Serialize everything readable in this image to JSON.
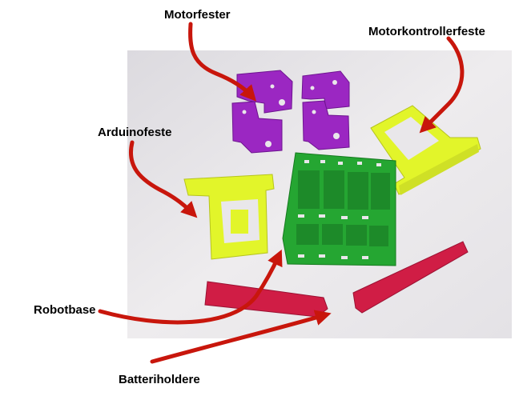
{
  "labels": {
    "motor_mounts": "Motorfester",
    "motor_controller_mount": "Motorkontrollerfeste",
    "arduino_mount": "Arduinofeste",
    "robot_base": "Robotbase",
    "battery_holders": "Batteriholdere"
  },
  "colors": {
    "arrow": "#c8160c",
    "photo_background": "#e9e7ea",
    "purple_parts": "#9b27c2",
    "yellow_parts": "#e2f52a",
    "green_base": "#25a632",
    "red_holders": "#d01d45"
  }
}
